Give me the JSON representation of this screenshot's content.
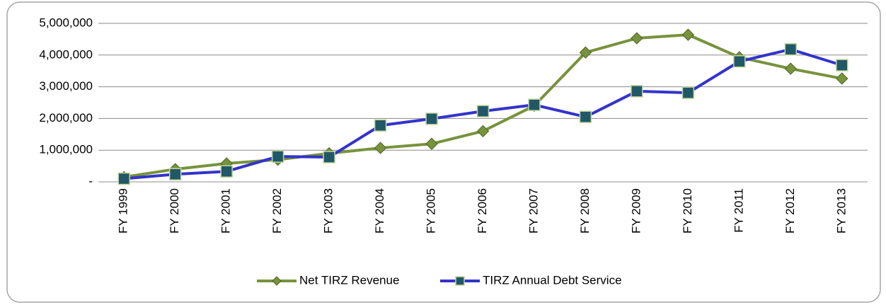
{
  "chart_data": {
    "type": "line",
    "categories": [
      "FY 1999",
      "FY 2000",
      "FY 2001",
      "FY 2002",
      "FY 2003",
      "FY 2004",
      "FY 2005",
      "FY 2006",
      "FY 2007",
      "FY 2008",
      "FY 2009",
      "FY 2010",
      "FY 2011",
      "FY 2012",
      "FY 2013"
    ],
    "series": [
      {
        "name": "Net TIRZ Revenue",
        "color": "#77933c",
        "marker": "diamond",
        "marker_color": "#77933c",
        "values": [
          150000,
          400000,
          580000,
          700000,
          900000,
          1070000,
          1200000,
          1600000,
          2400000,
          4080000,
          4530000,
          4640000,
          3930000,
          3570000,
          3260000
        ]
      },
      {
        "name": "TIRZ Annual Debt Service",
        "color": "#3333cc",
        "marker": "square",
        "marker_color": "#215868",
        "values": [
          100000,
          240000,
          330000,
          800000,
          780000,
          1780000,
          1990000,
          2230000,
          2430000,
          2050000,
          2860000,
          2810000,
          3800000,
          4180000,
          3680000
        ]
      }
    ],
    "ylim": [
      0,
      5000000
    ],
    "yticks": [
      {
        "value": 0,
        "label": "-"
      },
      {
        "value": 1000000,
        "label": "1,000,000"
      },
      {
        "value": 2000000,
        "label": "2,000,000"
      },
      {
        "value": 3000000,
        "label": "3,000,000"
      },
      {
        "value": 4000000,
        "label": "4,000,000"
      },
      {
        "value": 5000000,
        "label": "5,000,000"
      }
    ],
    "grid": true,
    "legend": "bottom"
  }
}
